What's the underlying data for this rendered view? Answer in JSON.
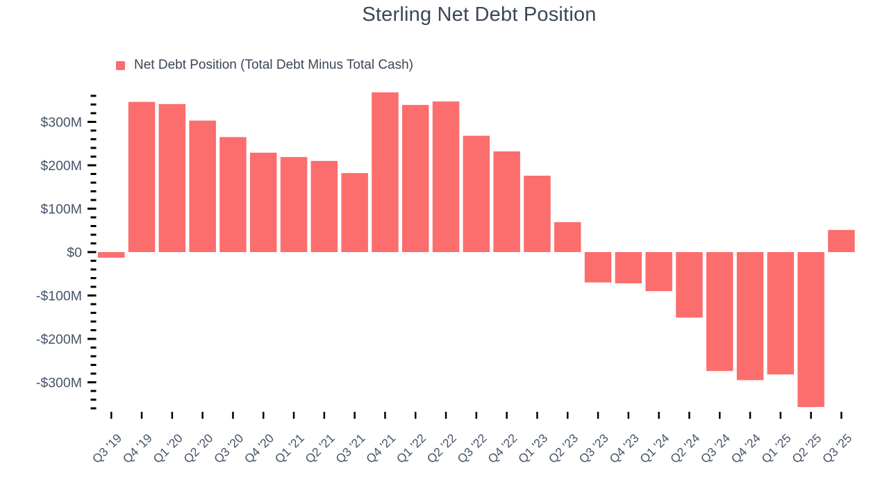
{
  "title": "Sterling Net Debt Position",
  "legend": {
    "label": "Net Debt Position (Total Debt Minus Total Cash)",
    "color": "#fc6d6d"
  },
  "colors": {
    "bar": "#fc6d6d",
    "text": "#3b4656",
    "axis_label": "#475369",
    "tick": "#000000"
  },
  "chart_data": {
    "type": "bar",
    "title": "Sterling Net Debt Position",
    "xlabel": "",
    "ylabel": "",
    "values_unit": "USD millions",
    "grid": false,
    "legend_position": "top-left",
    "categories": [
      "Q3 '19",
      "Q4 '19",
      "Q1 '20",
      "Q2 '20",
      "Q3 '20",
      "Q4 '20",
      "Q1 '21",
      "Q2 '21",
      "Q3 '21",
      "Q4 '21",
      "Q1 '22",
      "Q2 '22",
      "Q3 '22",
      "Q4 '22",
      "Q1 '23",
      "Q2 '23",
      "Q3 '23",
      "Q4 '23",
      "Q1 '24",
      "Q2 '24",
      "Q3 '24",
      "Q4 '24",
      "Q1 '25",
      "Q2 '25",
      "Q3 '25"
    ],
    "series": [
      {
        "name": "Net Debt Position (Total Debt Minus Total Cash)",
        "color": "#fc6d6d",
        "values": [
          -13,
          346,
          341,
          303,
          265,
          229,
          219,
          210,
          182,
          368,
          339,
          347,
          268,
          232,
          176,
          69,
          -70,
          -72,
          -90,
          -151,
          -274,
          -295,
          -282,
          -357,
          51
        ]
      }
    ],
    "y_axis": {
      "ylim_millions": [
        -370,
        375
      ],
      "minor_tick_step_millions": 20,
      "minor_tick_range_millions": [
        -360,
        360
      ],
      "ticks": [
        {
          "value": 300,
          "label": "$300M"
        },
        {
          "value": 200,
          "label": "$200M"
        },
        {
          "value": 100,
          "label": "$100M"
        },
        {
          "value": 0,
          "label": "$0"
        },
        {
          "value": -100,
          "label": "-$100M"
        },
        {
          "value": -200,
          "label": "-$200M"
        },
        {
          "value": -300,
          "label": "-$300M"
        }
      ]
    }
  }
}
